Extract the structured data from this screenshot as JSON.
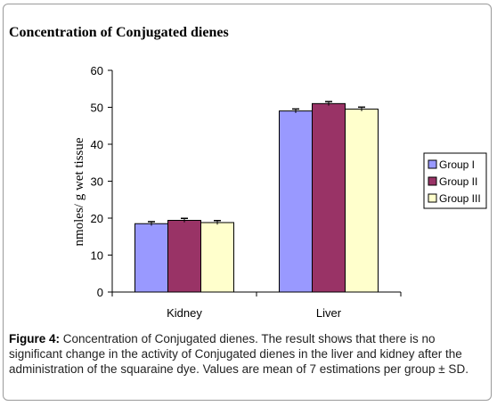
{
  "chart_data": {
    "type": "bar",
    "title": "Concentration of Conjugated dienes",
    "ylabel": "nmoles/ g wet tissue",
    "xlabel": "",
    "ylim": [
      0,
      60
    ],
    "yticks": [
      0,
      10,
      20,
      30,
      40,
      50,
      60
    ],
    "categories": [
      "Kidney",
      "Liver"
    ],
    "series": [
      {
        "name": "Group I",
        "values": [
          18.5,
          49.0
        ],
        "errors": [
          0.3,
          0.3
        ],
        "color": "#9999ff"
      },
      {
        "name": "Group II",
        "values": [
          19.4,
          51.0
        ],
        "errors": [
          0.3,
          0.3
        ],
        "color": "#993366"
      },
      {
        "name": "Group III",
        "values": [
          18.8,
          49.5
        ],
        "errors": [
          0.3,
          0.3
        ],
        "color": "#ffffcc"
      }
    ],
    "grid": false,
    "legend": "right"
  },
  "caption": {
    "label": "Figure 4:",
    "text": " Concentration of Conjugated dienes. The result shows that there is no significant change in the activity of Conjugated dienes in the liver and kidney after the administration of the squaraine dye. Values are mean of 7 estimations per group ± SD."
  }
}
